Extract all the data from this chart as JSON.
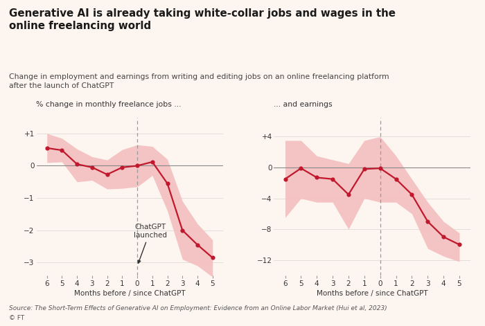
{
  "title": "Generative AI is already taking white-collar jobs and wages in the\nonline freelancing world",
  "subtitle": "Change in employment and earnings from writing and editing jobs on an online freelancing platform\nafter the launch of ChatGPT",
  "left_ylabel": "% change in monthly freelance jobs ...",
  "right_ylabel": "... and earnings",
  "xlabel": "Months before / since ChatGPT",
  "source": "Source: The Short-Term Effects of Generative AI on Employment: Evidence from an Online Labor Market (Hui et al, 2023)",
  "copyright": "© FT",
  "background_color": "#FDF5F0",
  "line_color": "#C0182C",
  "fill_color": "#F4BEBE",
  "annotation_text": "ChatGPT\nlaunched",
  "left_x": [
    -6,
    -5,
    -4,
    -3,
    -2,
    -1,
    0,
    1,
    2,
    3,
    4,
    5
  ],
  "left_y": [
    0.55,
    0.48,
    0.05,
    -0.05,
    -0.27,
    -0.05,
    0.0,
    0.12,
    -0.55,
    -2.0,
    -2.45,
    -2.85
  ],
  "left_upper": [
    1.0,
    0.85,
    0.52,
    0.28,
    0.18,
    0.5,
    0.65,
    0.6,
    0.2,
    -1.1,
    -1.8,
    -2.3
  ],
  "left_lower": [
    0.1,
    0.12,
    -0.5,
    -0.45,
    -0.72,
    -0.7,
    -0.65,
    -0.3,
    -1.4,
    -2.9,
    -3.1,
    -3.45
  ],
  "left_ylim": [
    -3.4,
    1.5
  ],
  "left_yticks": [
    1,
    0,
    -1,
    -2,
    -3
  ],
  "left_ytick_labels": [
    "+1",
    "0",
    "−1",
    "−2",
    "−3"
  ],
  "right_x": [
    -6,
    -5,
    -4,
    -3,
    -2,
    -1,
    0,
    1,
    2,
    3,
    4,
    5
  ],
  "right_y": [
    -1.5,
    -0.1,
    -1.3,
    -1.5,
    -3.5,
    -0.2,
    -0.1,
    -1.5,
    -3.5,
    -7.0,
    -9.0,
    -10.0
  ],
  "right_upper": [
    3.5,
    3.5,
    1.5,
    1.0,
    0.5,
    3.5,
    4.0,
    1.5,
    -1.5,
    -4.5,
    -7.0,
    -8.5
  ],
  "right_lower": [
    -6.5,
    -4.0,
    -4.5,
    -4.5,
    -8.0,
    -4.0,
    -4.5,
    -4.5,
    -6.0,
    -10.5,
    -11.5,
    -12.2
  ],
  "right_ylim": [
    -14.0,
    6.5
  ],
  "right_yticks": [
    4,
    0,
    -4,
    -8,
    -12
  ],
  "right_ytick_labels": [
    "+4",
    "0",
    "−4",
    "−8",
    "−12"
  ]
}
